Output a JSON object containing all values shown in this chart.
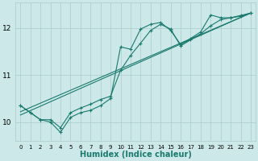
{
  "xlabel": "Humidex (Indice chaleur)",
  "ylabel": "",
  "bg_color": "#cce8e8",
  "grid_color": "#aacccc",
  "line_color": "#1a7a6e",
  "xlim": [
    -0.5,
    23.5
  ],
  "ylim": [
    9.6,
    12.55
  ],
  "xticks": [
    0,
    1,
    2,
    3,
    4,
    5,
    6,
    7,
    8,
    9,
    10,
    11,
    12,
    13,
    14,
    15,
    16,
    17,
    18,
    19,
    20,
    21,
    22,
    23
  ],
  "yticks": [
    10,
    11,
    12
  ],
  "line1_x": [
    0,
    1,
    2,
    3,
    4,
    5,
    6,
    7,
    8,
    9,
    10,
    11,
    12,
    13,
    14,
    15,
    16,
    17,
    18,
    19,
    20,
    21,
    22,
    23
  ],
  "line1_y": [
    10.35,
    10.2,
    10.05,
    10.0,
    9.78,
    10.1,
    10.2,
    10.25,
    10.35,
    10.5,
    11.6,
    11.55,
    11.98,
    12.08,
    12.12,
    11.95,
    11.65,
    11.78,
    11.92,
    12.28,
    12.22,
    12.22,
    12.27,
    12.32
  ],
  "line2_x": [
    0,
    1,
    2,
    3,
    4,
    5,
    6,
    7,
    8,
    9,
    10,
    11,
    12,
    13,
    14,
    15,
    16,
    17,
    18,
    19,
    20,
    21,
    22,
    23
  ],
  "line2_y": [
    10.35,
    10.2,
    10.05,
    10.05,
    9.88,
    10.2,
    10.3,
    10.38,
    10.48,
    10.55,
    11.1,
    11.42,
    11.68,
    11.95,
    12.08,
    11.98,
    11.62,
    11.75,
    11.88,
    12.05,
    12.18,
    12.22,
    12.25,
    12.32
  ],
  "line3_x": [
    0,
    23
  ],
  "line3_y": [
    10.15,
    12.32
  ],
  "line4_x": [
    0,
    23
  ],
  "line4_y": [
    10.22,
    12.32
  ]
}
